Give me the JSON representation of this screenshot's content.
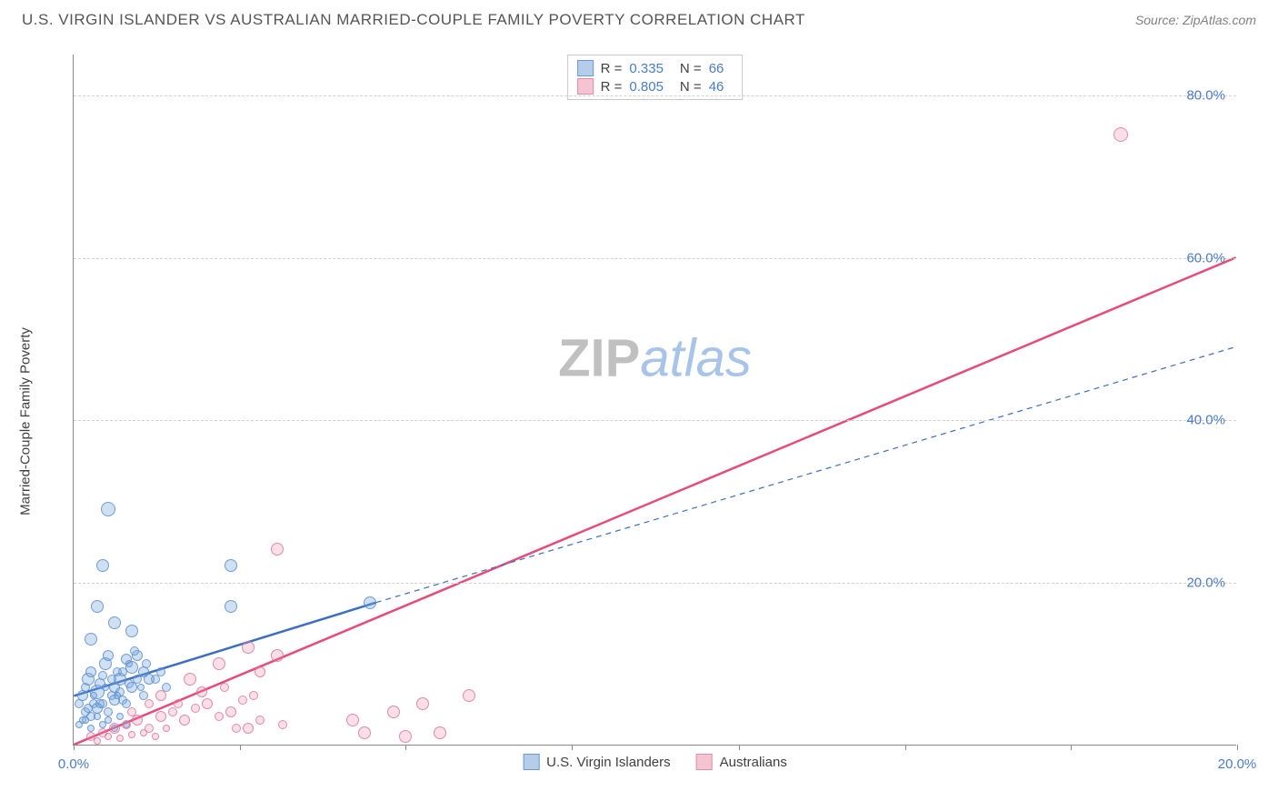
{
  "header": {
    "title": "U.S. VIRGIN ISLANDER VS AUSTRALIAN MARRIED-COUPLE FAMILY POVERTY CORRELATION CHART",
    "source": "Source: ZipAtlas.com"
  },
  "watermark": {
    "zip": "ZIP",
    "atlas": "atlas"
  },
  "chart": {
    "type": "scatter",
    "xlim": [
      0,
      20
    ],
    "ylim": [
      0,
      85
    ],
    "x_ticks": [
      0,
      2.86,
      5.71,
      8.57,
      11.43,
      14.29,
      17.14,
      20
    ],
    "x_tick_labels": {
      "0": "0.0%",
      "20": "20.0%"
    },
    "y_ticks": [
      20,
      40,
      60,
      80
    ],
    "y_tick_labels": {
      "20": "20.0%",
      "40": "40.0%",
      "60": "60.0%",
      "80": "80.0%"
    },
    "y_axis_title": "Married-Couple Family Poverty",
    "background_color": "#ffffff",
    "grid_color": "#d0d0d0",
    "axis_color": "#888888",
    "tick_label_color": "#4a7bc8",
    "series": [
      {
        "name": "U.S. Virgin Islanders",
        "color_fill": "rgba(120,165,220,0.35)",
        "color_stroke": "rgba(90,140,210,0.8)",
        "swatch_fill": "#b5cdeb",
        "swatch_border": "#6a9bd8",
        "marker_size_range": [
          8,
          20
        ],
        "R": "0.335",
        "N": "66",
        "trend": {
          "x1": 0,
          "y1": 6,
          "x2": 5.2,
          "y2": 17.5,
          "dash_x2": 20,
          "dash_y2": 49,
          "color": "#3b6fc4",
          "width": 2.5
        },
        "points": [
          {
            "x": 0.1,
            "y": 5,
            "s": 10
          },
          {
            "x": 0.15,
            "y": 6,
            "s": 12
          },
          {
            "x": 0.2,
            "y": 7,
            "s": 10
          },
          {
            "x": 0.25,
            "y": 8,
            "s": 14
          },
          {
            "x": 0.3,
            "y": 9,
            "s": 12
          },
          {
            "x": 0.35,
            "y": 5,
            "s": 10
          },
          {
            "x": 0.4,
            "y": 6.5,
            "s": 16
          },
          {
            "x": 0.45,
            "y": 7.5,
            "s": 12
          },
          {
            "x": 0.5,
            "y": 8.5,
            "s": 10
          },
          {
            "x": 0.55,
            "y": 10,
            "s": 14
          },
          {
            "x": 0.6,
            "y": 11,
            "s": 12
          },
          {
            "x": 0.65,
            "y": 6,
            "s": 10
          },
          {
            "x": 0.7,
            "y": 7,
            "s": 12
          },
          {
            "x": 0.75,
            "y": 9,
            "s": 10
          },
          {
            "x": 0.8,
            "y": 8,
            "s": 14
          },
          {
            "x": 0.85,
            "y": 5.5,
            "s": 10
          },
          {
            "x": 0.9,
            "y": 10.5,
            "s": 12
          },
          {
            "x": 0.95,
            "y": 7.5,
            "s": 10
          },
          {
            "x": 1.0,
            "y": 9.5,
            "s": 14
          },
          {
            "x": 1.1,
            "y": 11,
            "s": 12
          },
          {
            "x": 0.3,
            "y": 13,
            "s": 14
          },
          {
            "x": 0.7,
            "y": 15,
            "s": 14
          },
          {
            "x": 1.2,
            "y": 6,
            "s": 10
          },
          {
            "x": 1.3,
            "y": 8,
            "s": 12
          },
          {
            "x": 0.4,
            "y": 17,
            "s": 14
          },
          {
            "x": 0.5,
            "y": 22,
            "s": 14
          },
          {
            "x": 1.0,
            "y": 14,
            "s": 14
          },
          {
            "x": 0.6,
            "y": 29,
            "s": 16
          },
          {
            "x": 2.7,
            "y": 17,
            "s": 14
          },
          {
            "x": 2.7,
            "y": 22,
            "s": 14
          },
          {
            "x": 5.1,
            "y": 17.5,
            "s": 14
          },
          {
            "x": 0.2,
            "y": 4,
            "s": 10
          },
          {
            "x": 0.3,
            "y": 3.5,
            "s": 10
          },
          {
            "x": 0.4,
            "y": 4.5,
            "s": 12
          },
          {
            "x": 0.5,
            "y": 5,
            "s": 10
          },
          {
            "x": 0.6,
            "y": 4,
            "s": 10
          },
          {
            "x": 0.7,
            "y": 5.5,
            "s": 12
          },
          {
            "x": 0.8,
            "y": 6.5,
            "s": 10
          },
          {
            "x": 0.9,
            "y": 5,
            "s": 10
          },
          {
            "x": 1.0,
            "y": 7,
            "s": 12
          },
          {
            "x": 1.1,
            "y": 8,
            "s": 10
          },
          {
            "x": 1.2,
            "y": 9,
            "s": 12
          },
          {
            "x": 0.15,
            "y": 3,
            "s": 8
          },
          {
            "x": 0.25,
            "y": 4.5,
            "s": 10
          },
          {
            "x": 0.35,
            "y": 6,
            "s": 8
          },
          {
            "x": 0.45,
            "y": 5,
            "s": 10
          },
          {
            "x": 0.55,
            "y": 7,
            "s": 8
          },
          {
            "x": 0.65,
            "y": 8,
            "s": 10
          },
          {
            "x": 0.75,
            "y": 6,
            "s": 8
          },
          {
            "x": 0.85,
            "y": 9,
            "s": 10
          },
          {
            "x": 0.95,
            "y": 10,
            "s": 8
          },
          {
            "x": 1.05,
            "y": 11.5,
            "s": 10
          },
          {
            "x": 1.15,
            "y": 7,
            "s": 8
          },
          {
            "x": 1.25,
            "y": 10,
            "s": 10
          },
          {
            "x": 1.4,
            "y": 8,
            "s": 10
          },
          {
            "x": 1.5,
            "y": 9,
            "s": 10
          },
          {
            "x": 1.6,
            "y": 7,
            "s": 10
          },
          {
            "x": 0.1,
            "y": 2.5,
            "s": 8
          },
          {
            "x": 0.2,
            "y": 3,
            "s": 8
          },
          {
            "x": 0.3,
            "y": 2,
            "s": 8
          },
          {
            "x": 0.4,
            "y": 3.5,
            "s": 8
          },
          {
            "x": 0.5,
            "y": 2.5,
            "s": 8
          },
          {
            "x": 0.6,
            "y": 3,
            "s": 8
          },
          {
            "x": 0.7,
            "y": 2,
            "s": 8
          },
          {
            "x": 0.8,
            "y": 3.5,
            "s": 8
          },
          {
            "x": 0.9,
            "y": 2.5,
            "s": 8
          }
        ]
      },
      {
        "name": "Australians",
        "color_fill": "rgba(235,140,170,0.28)",
        "color_stroke": "rgba(225,110,150,0.75)",
        "swatch_fill": "#f5c4d3",
        "swatch_border": "#e888ab",
        "marker_size_range": [
          8,
          18
        ],
        "R": "0.805",
        "N": "46",
        "trend": {
          "x1": 0,
          "y1": 0,
          "x2": 20,
          "y2": 60,
          "color": "#e84b7a",
          "width": 2.5
        },
        "points": [
          {
            "x": 0.3,
            "y": 1,
            "s": 10
          },
          {
            "x": 0.5,
            "y": 1.5,
            "s": 10
          },
          {
            "x": 0.7,
            "y": 2,
            "s": 12
          },
          {
            "x": 0.9,
            "y": 2.5,
            "s": 10
          },
          {
            "x": 1.1,
            "y": 3,
            "s": 12
          },
          {
            "x": 1.3,
            "y": 2,
            "s": 10
          },
          {
            "x": 1.5,
            "y": 3.5,
            "s": 12
          },
          {
            "x": 1.7,
            "y": 4,
            "s": 10
          },
          {
            "x": 1.9,
            "y": 3,
            "s": 12
          },
          {
            "x": 2.1,
            "y": 4.5,
            "s": 10
          },
          {
            "x": 2.3,
            "y": 5,
            "s": 12
          },
          {
            "x": 2.5,
            "y": 3.5,
            "s": 10
          },
          {
            "x": 2.7,
            "y": 4,
            "s": 12
          },
          {
            "x": 2.9,
            "y": 5.5,
            "s": 10
          },
          {
            "x": 3.0,
            "y": 2,
            "s": 12
          },
          {
            "x": 3.1,
            "y": 6,
            "s": 10
          },
          {
            "x": 2.0,
            "y": 8,
            "s": 14
          },
          {
            "x": 2.5,
            "y": 10,
            "s": 14
          },
          {
            "x": 3.0,
            "y": 12,
            "s": 14
          },
          {
            "x": 3.2,
            "y": 9,
            "s": 12
          },
          {
            "x": 3.5,
            "y": 11,
            "s": 14
          },
          {
            "x": 3.5,
            "y": 24,
            "s": 14
          },
          {
            "x": 1.5,
            "y": 6,
            "s": 12
          },
          {
            "x": 1.8,
            "y": 5,
            "s": 10
          },
          {
            "x": 2.2,
            "y": 6.5,
            "s": 12
          },
          {
            "x": 2.6,
            "y": 7,
            "s": 10
          },
          {
            "x": 0.4,
            "y": 0.5,
            "s": 8
          },
          {
            "x": 0.6,
            "y": 1,
            "s": 8
          },
          {
            "x": 0.8,
            "y": 0.8,
            "s": 8
          },
          {
            "x": 1.0,
            "y": 1.2,
            "s": 8
          },
          {
            "x": 1.2,
            "y": 1.5,
            "s": 8
          },
          {
            "x": 1.4,
            "y": 1,
            "s": 8
          },
          {
            "x": 1.6,
            "y": 2,
            "s": 8
          },
          {
            "x": 4.8,
            "y": 3,
            "s": 14
          },
          {
            "x": 5.0,
            "y": 1.5,
            "s": 14
          },
          {
            "x": 5.5,
            "y": 4,
            "s": 14
          },
          {
            "x": 5.7,
            "y": 1,
            "s": 14
          },
          {
            "x": 6.0,
            "y": 5,
            "s": 14
          },
          {
            "x": 6.3,
            "y": 1.5,
            "s": 14
          },
          {
            "x": 6.8,
            "y": 6,
            "s": 14
          },
          {
            "x": 2.8,
            "y": 2,
            "s": 10
          },
          {
            "x": 3.2,
            "y": 3,
            "s": 10
          },
          {
            "x": 3.6,
            "y": 2.5,
            "s": 10
          },
          {
            "x": 1.0,
            "y": 4,
            "s": 10
          },
          {
            "x": 1.3,
            "y": 5,
            "s": 10
          },
          {
            "x": 18.0,
            "y": 75,
            "s": 16
          }
        ]
      }
    ],
    "legend_top": {
      "rows": [
        {
          "swatch": 0,
          "r_label": "R =",
          "r_val": "0.335",
          "n_label": "N =",
          "n_val": "66"
        },
        {
          "swatch": 1,
          "r_label": "R =",
          "r_val": "0.805",
          "n_label": "N =",
          "n_val": "46"
        }
      ]
    },
    "legend_bottom": [
      {
        "swatch": 0,
        "label": "U.S. Virgin Islanders"
      },
      {
        "swatch": 1,
        "label": "Australians"
      }
    ]
  }
}
